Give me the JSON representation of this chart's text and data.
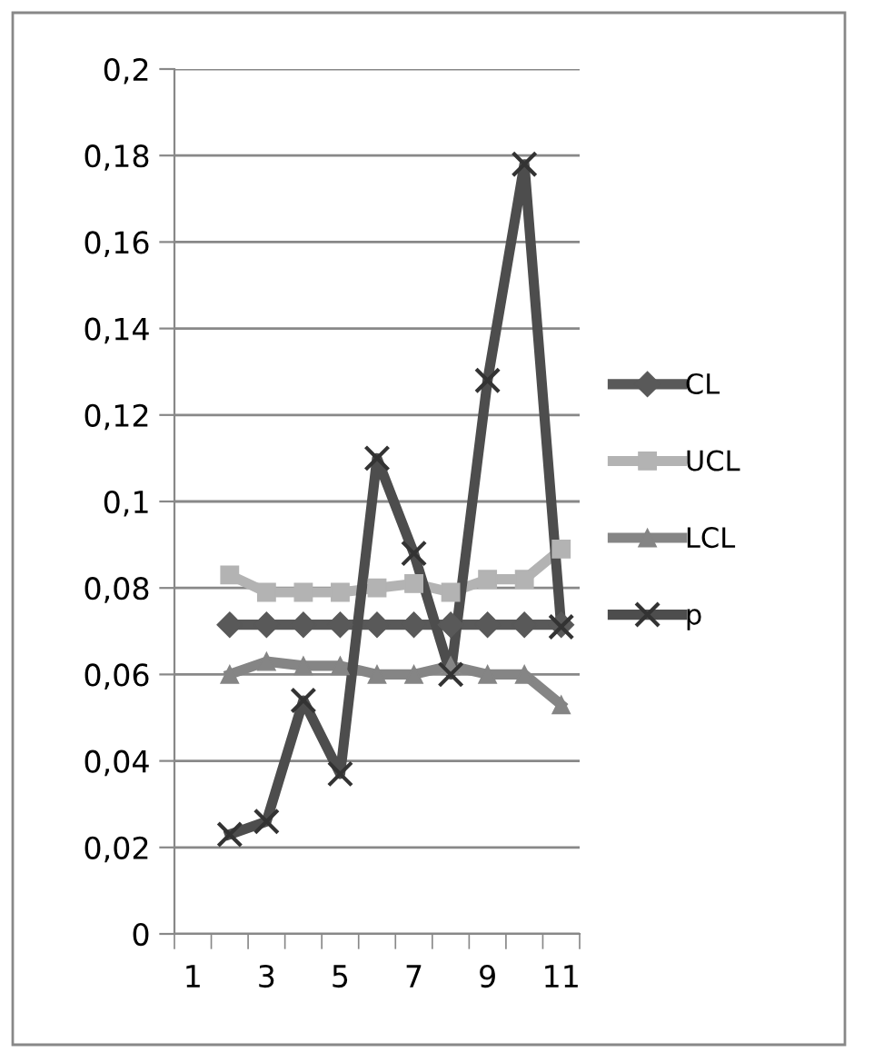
{
  "chart_data": {
    "type": "line",
    "categories": [
      "1",
      null,
      "3",
      null,
      "5",
      null,
      "7",
      null,
      "9",
      null,
      "11"
    ],
    "series": [
      {
        "name": "CL",
        "color": "#595959",
        "marker": "diamond",
        "values": [
          null,
          0.0715,
          0.0715,
          0.0715,
          0.0715,
          0.0715,
          0.0715,
          0.0715,
          0.0715,
          0.0715,
          0.0715
        ]
      },
      {
        "name": "UCL",
        "color": "#b3b3b3",
        "marker": "square",
        "values": [
          null,
          0.083,
          0.079,
          0.079,
          0.079,
          0.08,
          0.081,
          0.079,
          0.082,
          0.082,
          0.089
        ]
      },
      {
        "name": "LCL",
        "color": "#858585",
        "marker": "triangle",
        "values": [
          null,
          0.06,
          0.063,
          0.062,
          0.062,
          0.06,
          0.06,
          0.062,
          0.06,
          0.06,
          0.053
        ]
      },
      {
        "name": "p",
        "color": "#4d4d4d",
        "marker": "cross",
        "values": [
          null,
          0.023,
          0.026,
          0.054,
          0.037,
          0.11,
          0.088,
          0.06,
          0.128,
          0.178,
          0.071
        ]
      }
    ],
    "ylim": [
      0,
      0.2
    ],
    "yticks": [
      0,
      {
        "value": 0.02,
        "label": "0,02"
      },
      {
        "value": 0.04,
        "label": "0,04"
      },
      {
        "value": 0.06,
        "label": "0,06"
      },
      {
        "value": 0.08,
        "label": "0,08"
      },
      {
        "value": 0.1,
        "label": "0,1"
      },
      {
        "value": 0.12,
        "label": "0,12"
      },
      {
        "value": 0.14,
        "label": "0,14"
      },
      {
        "value": 0.16,
        "label": "0,16"
      },
      {
        "value": 0.18,
        "label": "0,18"
      },
      {
        "value": 0.2,
        "label": "0,2"
      }
    ],
    "grid": "y",
    "legend": "right",
    "line_style": "solid"
  }
}
